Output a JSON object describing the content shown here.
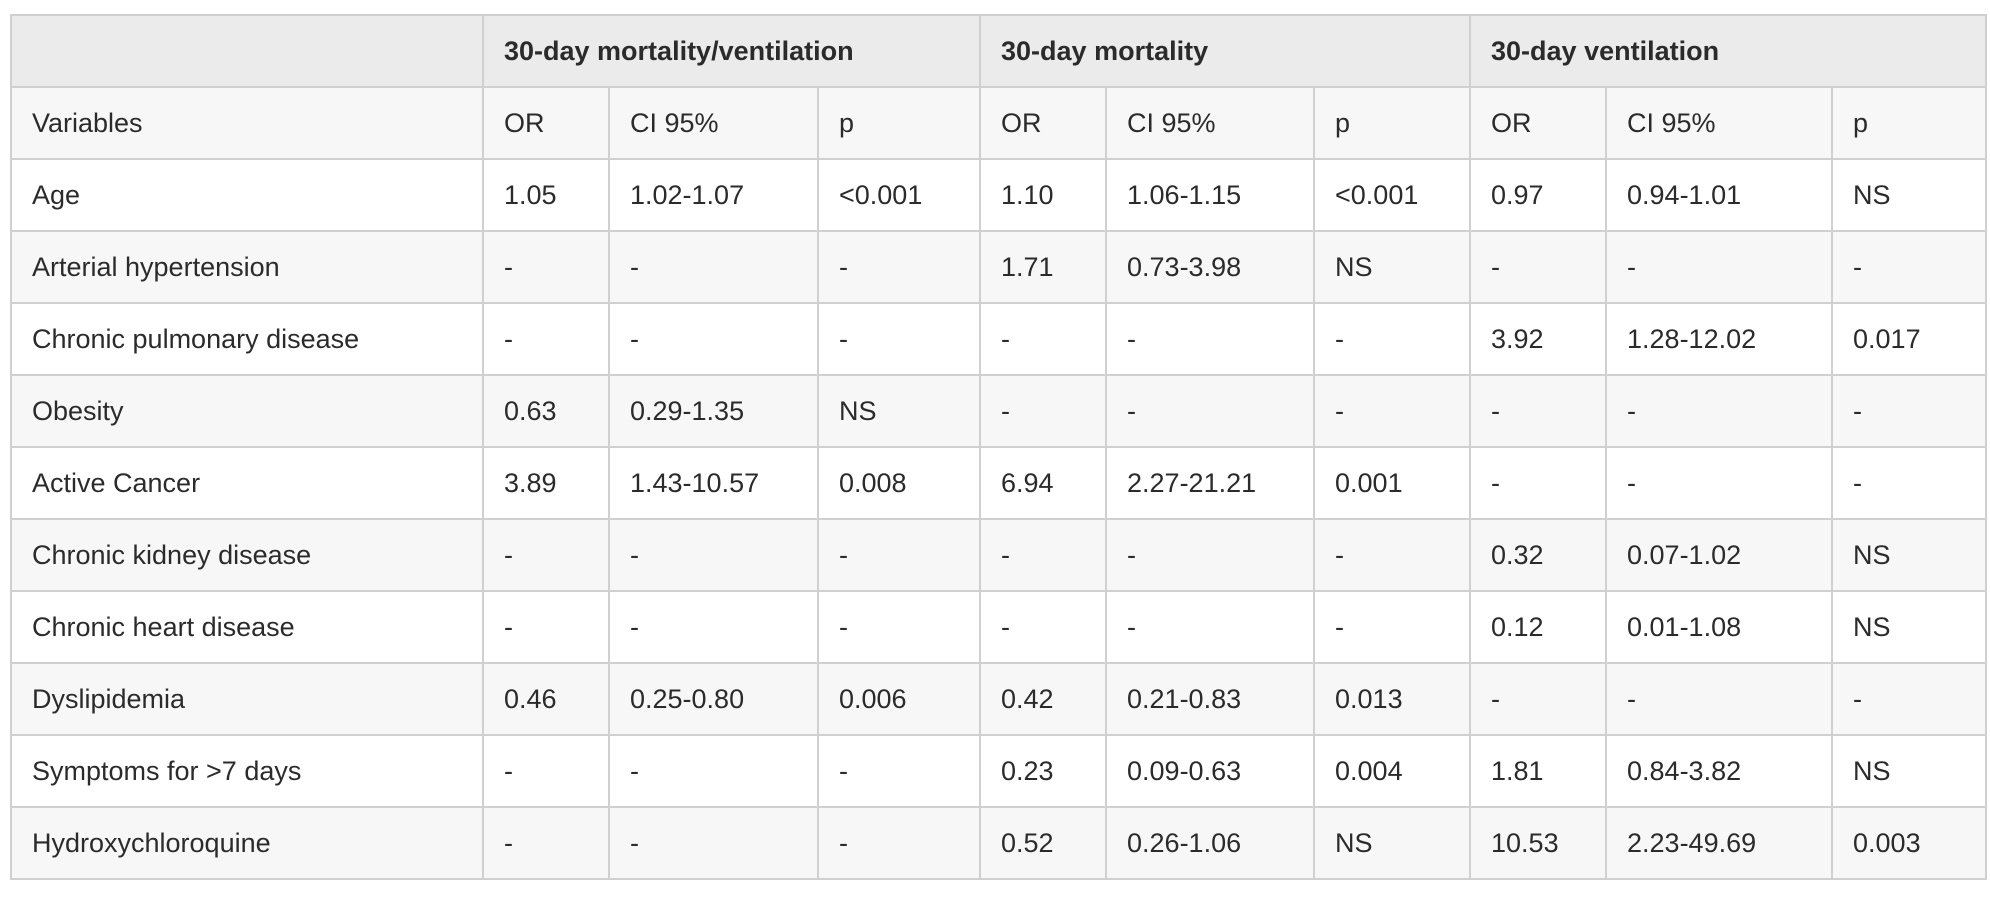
{
  "table": {
    "group_headers": [
      "",
      "30-day mortality/ventilation",
      "30-day mortality",
      "30-day ventilation"
    ],
    "sub_headers": [
      "Variables",
      "OR",
      "CI 95%",
      "p",
      "OR",
      "CI 95%",
      "p",
      "OR",
      "CI 95%",
      "p"
    ],
    "rows": [
      [
        "Age",
        "1.05",
        "1.02-1.07",
        "<0.001",
        "1.10",
        "1.06-1.15",
        "<0.001",
        "0.97",
        "0.94-1.01",
        "NS"
      ],
      [
        "Arterial hypertension",
        "-",
        "-",
        "-",
        "1.71",
        "0.73-3.98",
        "NS",
        "-",
        "-",
        "-"
      ],
      [
        "Chronic pulmonary disease",
        "-",
        "-",
        "-",
        "-",
        "-",
        "-",
        "3.92",
        "1.28-12.02",
        "0.017"
      ],
      [
        "Obesity",
        "0.63",
        "0.29-1.35",
        "NS",
        "-",
        "-",
        "-",
        "-",
        "-",
        "-"
      ],
      [
        "Active Cancer",
        "3.89",
        "1.43-10.57",
        "0.008",
        "6.94",
        "2.27-21.21",
        "0.001",
        "-",
        "-",
        "-"
      ],
      [
        "Chronic kidney disease",
        "-",
        "-",
        "-",
        "-",
        "-",
        "-",
        "0.32",
        "0.07-1.02",
        "NS"
      ],
      [
        "Chronic heart disease",
        "-",
        "-",
        "-",
        "-",
        "-",
        "-",
        "0.12",
        "0.01-1.08",
        "NS"
      ],
      [
        "Dyslipidemia",
        "0.46",
        "0.25-0.80",
        "0.006",
        "0.42",
        "0.21-0.83",
        "0.013",
        "-",
        "-",
        "-"
      ],
      [
        "Symptoms for >7 days",
        "-",
        "-",
        "-",
        "0.23",
        "0.09-0.63",
        "0.004",
        "1.81",
        "0.84-3.82",
        "NS"
      ],
      [
        "Hydroxychloroquine",
        "-",
        "-",
        "-",
        "0.52",
        "0.26-1.06",
        "NS",
        "10.53",
        "2.23-49.69",
        "0.003"
      ]
    ]
  }
}
